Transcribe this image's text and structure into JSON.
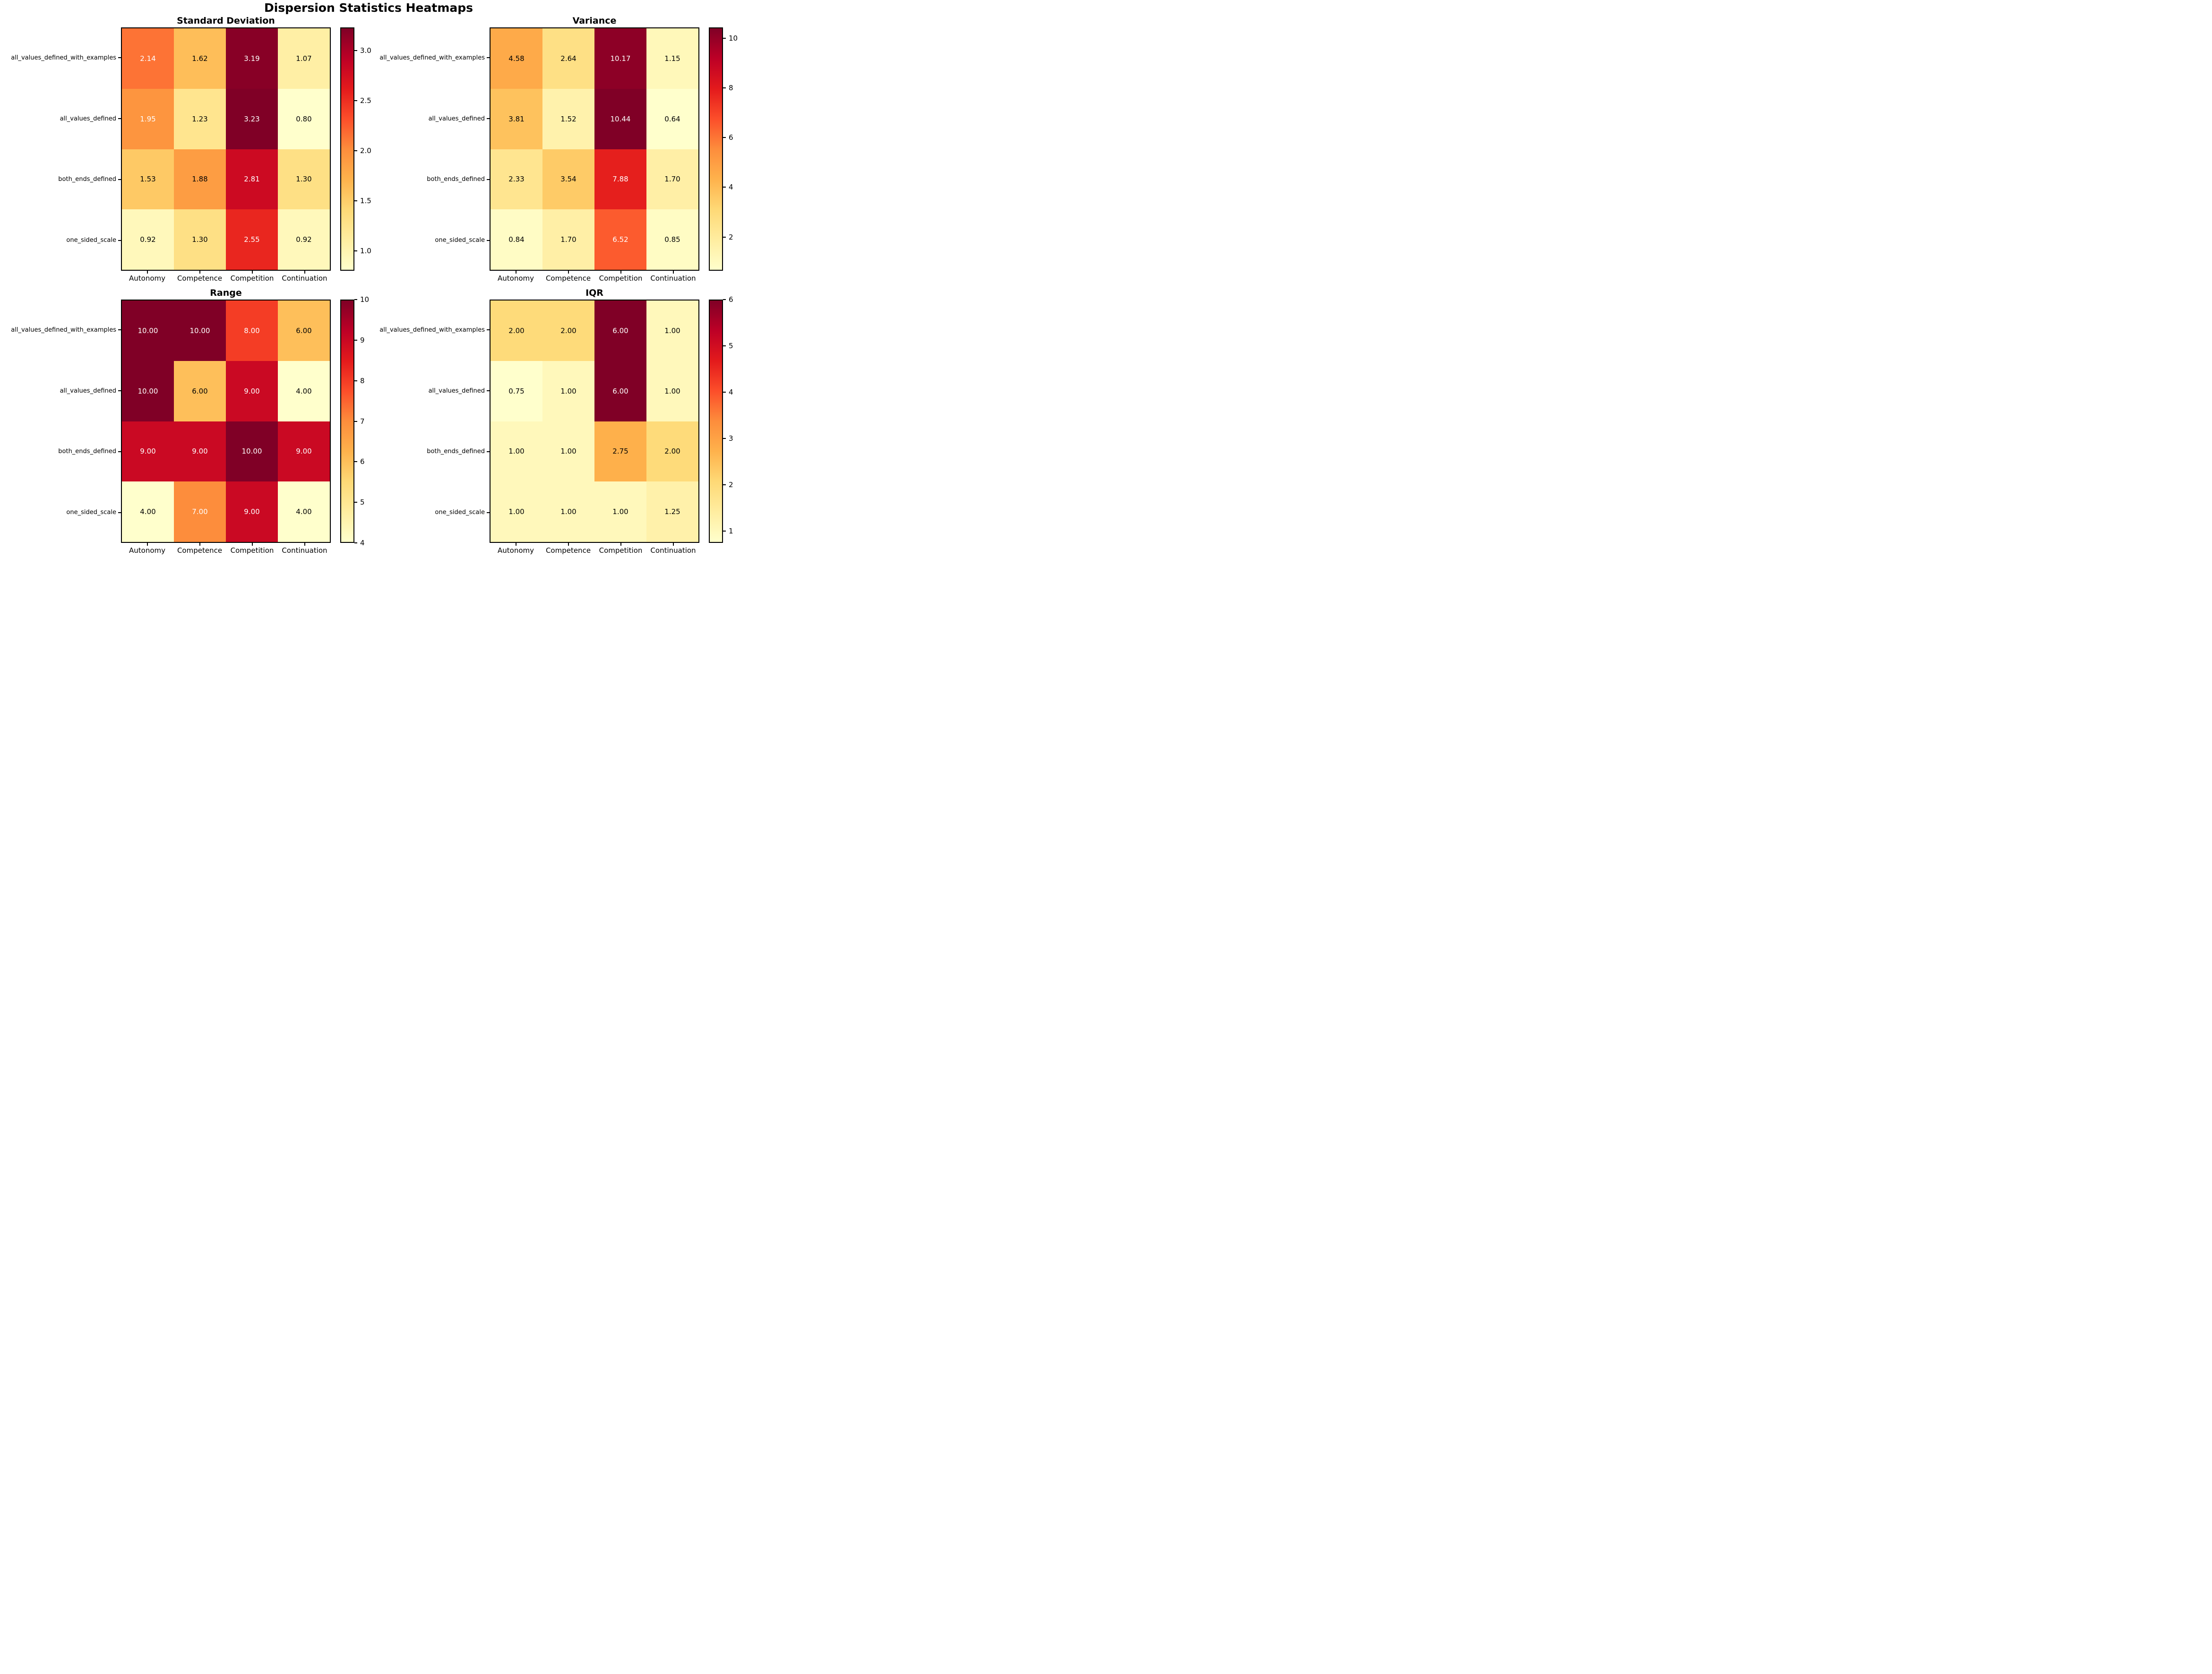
{
  "figure": {
    "title": "Dispersion Statistics Heatmaps",
    "background_color": "#ffffff",
    "text_color": "#000000"
  },
  "palette": {
    "name": "YlOrRd",
    "anchors": [
      "#ffffcc",
      "#ffeda0",
      "#fed976",
      "#feb24c",
      "#fd8d3c",
      "#fc4e2a",
      "#e31a1c",
      "#bd0026",
      "#800026"
    ],
    "cell_label_white_if_luminance_below": 173,
    "cell_label_white": "#ffffff",
    "cell_label_black": "#000000"
  },
  "chart_data": [
    {
      "type": "heatmap",
      "title": "Standard Deviation",
      "categories_x": [
        "Autonomy",
        "Competence",
        "Competition",
        "Continuation"
      ],
      "categories_y": [
        "all_values_defined_with_examples",
        "all_values_defined",
        "both_ends_defined",
        "one_sided_scale"
      ],
      "values": [
        [
          2.14,
          1.62,
          3.19,
          1.07
        ],
        [
          1.95,
          1.23,
          3.23,
          0.8
        ],
        [
          1.53,
          1.88,
          2.81,
          1.3
        ],
        [
          0.92,
          1.3,
          2.55,
          0.92
        ]
      ],
      "vmin": 0.8,
      "vmax": 3.23,
      "value_decimals": 2,
      "colorbar_ticks": [
        1.0,
        1.5,
        2.0,
        2.5,
        3.0
      ],
      "colorbar_tick_labels": [
        "1.0",
        "1.5",
        "2.0",
        "2.5",
        "3.0"
      ]
    },
    {
      "type": "heatmap",
      "title": "Variance",
      "categories_x": [
        "Autonomy",
        "Competence",
        "Competition",
        "Continuation"
      ],
      "categories_y": [
        "all_values_defined_with_examples",
        "all_values_defined",
        "both_ends_defined",
        "one_sided_scale"
      ],
      "values": [
        [
          4.58,
          2.64,
          10.17,
          1.15
        ],
        [
          3.81,
          1.52,
          10.44,
          0.64
        ],
        [
          2.33,
          3.54,
          7.88,
          1.7
        ],
        [
          0.84,
          1.7,
          6.52,
          0.85
        ]
      ],
      "vmin": 0.64,
      "vmax": 10.44,
      "value_decimals": 2,
      "colorbar_ticks": [
        2,
        4,
        6,
        8,
        10
      ],
      "colorbar_tick_labels": [
        "2",
        "4",
        "6",
        "8",
        "10"
      ]
    },
    {
      "type": "heatmap",
      "title": "Range",
      "categories_x": [
        "Autonomy",
        "Competence",
        "Competition",
        "Continuation"
      ],
      "categories_y": [
        "all_values_defined_with_examples",
        "all_values_defined",
        "both_ends_defined",
        "one_sided_scale"
      ],
      "values": [
        [
          10.0,
          10.0,
          8.0,
          6.0
        ],
        [
          10.0,
          6.0,
          9.0,
          4.0
        ],
        [
          9.0,
          9.0,
          10.0,
          9.0
        ],
        [
          4.0,
          7.0,
          9.0,
          4.0
        ]
      ],
      "vmin": 4.0,
      "vmax": 10.0,
      "value_decimals": 2,
      "colorbar_ticks": [
        4,
        5,
        6,
        7,
        8,
        9,
        10
      ],
      "colorbar_tick_labels": [
        "4",
        "5",
        "6",
        "7",
        "8",
        "9",
        "10"
      ]
    },
    {
      "type": "heatmap",
      "title": "IQR",
      "categories_x": [
        "Autonomy",
        "Competence",
        "Competition",
        "Continuation"
      ],
      "categories_y": [
        "all_values_defined_with_examples",
        "all_values_defined",
        "both_ends_defined",
        "one_sided_scale"
      ],
      "values": [
        [
          2.0,
          2.0,
          6.0,
          1.0
        ],
        [
          0.75,
          1.0,
          6.0,
          1.0
        ],
        [
          1.0,
          1.0,
          2.75,
          2.0
        ],
        [
          1.0,
          1.0,
          1.0,
          1.25
        ]
      ],
      "vmin": 0.75,
      "vmax": 6.0,
      "value_decimals": 2,
      "colorbar_ticks": [
        1,
        2,
        3,
        4,
        5,
        6
      ],
      "colorbar_tick_labels": [
        "1",
        "2",
        "3",
        "4",
        "5",
        "6"
      ]
    }
  ]
}
